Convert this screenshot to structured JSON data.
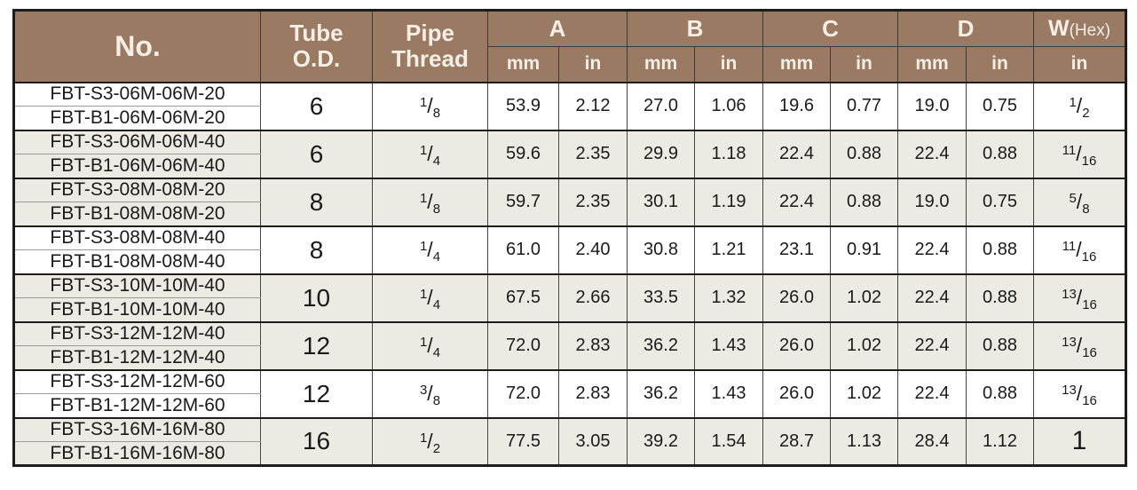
{
  "colors": {
    "header_bg": "#9B7A64",
    "header_text": "#F4EEE4",
    "row_shaded": "#EDEAE3",
    "row_white": "#FFFFFF",
    "border_dark": "#1C1C1C",
    "border_light": "#9A9A9A",
    "grid": "#454545",
    "text": "#1A1A1A"
  },
  "table": {
    "header": {
      "no": "No.",
      "tube_od_line1": "Tube",
      "tube_od_line2": "O.D.",
      "pipe_thread_line1": "Pipe",
      "pipe_thread_line2": "Thread",
      "dims": {
        "a": "A",
        "b": "B",
        "c": "C",
        "d": "D"
      },
      "w_label": "W",
      "w_suffix": "(Hex)",
      "unit_mm": "mm",
      "unit_in": "in"
    },
    "rows": [
      {
        "no_s3": "FBT-S3-06M-06M-20",
        "no_b1": "FBT-B1-06M-06M-20",
        "tube_od": "6",
        "pipe_thread": {
          "num": "1",
          "den": "8"
        },
        "a_mm": "53.9",
        "a_in": "2.12",
        "b_mm": "27.0",
        "b_in": "1.06",
        "c_mm": "19.6",
        "c_in": "0.77",
        "d_mm": "19.0",
        "d_in": "0.75",
        "w_hex": {
          "num": "1",
          "den": "2"
        },
        "shaded": false
      },
      {
        "no_s3": "FBT-S3-06M-06M-40",
        "no_b1": "FBT-B1-06M-06M-40",
        "tube_od": "6",
        "pipe_thread": {
          "num": "1",
          "den": "4"
        },
        "a_mm": "59.6",
        "a_in": "2.35",
        "b_mm": "29.9",
        "b_in": "1.18",
        "c_mm": "22.4",
        "c_in": "0.88",
        "d_mm": "22.4",
        "d_in": "0.88",
        "w_hex": {
          "num": "11",
          "den": "16"
        },
        "shaded": true
      },
      {
        "no_s3": "FBT-S3-08M-08M-20",
        "no_b1": "FBT-B1-08M-08M-20",
        "tube_od": "8",
        "pipe_thread": {
          "num": "1",
          "den": "8"
        },
        "a_mm": "59.7",
        "a_in": "2.35",
        "b_mm": "30.1",
        "b_in": "1.19",
        "c_mm": "22.4",
        "c_in": "0.88",
        "d_mm": "19.0",
        "d_in": "0.75",
        "w_hex": {
          "num": "5",
          "den": "8"
        },
        "shaded": true
      },
      {
        "no_s3": "FBT-S3-08M-08M-40",
        "no_b1": "FBT-B1-08M-08M-40",
        "tube_od": "8",
        "pipe_thread": {
          "num": "1",
          "den": "4"
        },
        "a_mm": "61.0",
        "a_in": "2.40",
        "b_mm": "30.8",
        "b_in": "1.21",
        "c_mm": "23.1",
        "c_in": "0.91",
        "d_mm": "22.4",
        "d_in": "0.88",
        "w_hex": {
          "num": "11",
          "den": "16"
        },
        "shaded": false
      },
      {
        "no_s3": "FBT-S3-10M-10M-40",
        "no_b1": "FBT-B1-10M-10M-40",
        "tube_od": "10",
        "pipe_thread": {
          "num": "1",
          "den": "4"
        },
        "a_mm": "67.5",
        "a_in": "2.66",
        "b_mm": "33.5",
        "b_in": "1.32",
        "c_mm": "26.0",
        "c_in": "1.02",
        "d_mm": "22.4",
        "d_in": "0.88",
        "w_hex": {
          "num": "13",
          "den": "16"
        },
        "shaded": true
      },
      {
        "no_s3": "FBT-S3-12M-12M-40",
        "no_b1": "FBT-B1-12M-12M-40",
        "tube_od": "12",
        "pipe_thread": {
          "num": "1",
          "den": "4"
        },
        "a_mm": "72.0",
        "a_in": "2.83",
        "b_mm": "36.2",
        "b_in": "1.43",
        "c_mm": "26.0",
        "c_in": "1.02",
        "d_mm": "22.4",
        "d_in": "0.88",
        "w_hex": {
          "num": "13",
          "den": "16"
        },
        "shaded": true
      },
      {
        "no_s3": "FBT-S3-12M-12M-60",
        "no_b1": "FBT-B1-12M-12M-60",
        "tube_od": "12",
        "pipe_thread": {
          "num": "3",
          "den": "8"
        },
        "a_mm": "72.0",
        "a_in": "2.83",
        "b_mm": "36.2",
        "b_in": "1.43",
        "c_mm": "26.0",
        "c_in": "1.02",
        "d_mm": "22.4",
        "d_in": "0.88",
        "w_hex": {
          "num": "13",
          "den": "16"
        },
        "shaded": false
      },
      {
        "no_s3": "FBT-S3-16M-16M-80",
        "no_b1": "FBT-B1-16M-16M-80",
        "tube_od": "16",
        "pipe_thread": {
          "num": "1",
          "den": "2"
        },
        "a_mm": "77.5",
        "a_in": "3.05",
        "b_mm": "39.2",
        "b_in": "1.54",
        "c_mm": "28.7",
        "c_in": "1.13",
        "d_mm": "28.4",
        "d_in": "1.12",
        "w_hex": {
          "whole": "1"
        },
        "shaded": true
      }
    ]
  }
}
